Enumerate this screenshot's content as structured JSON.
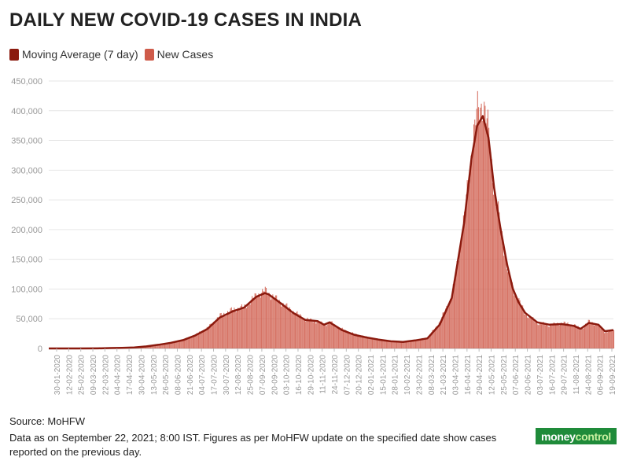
{
  "title": "DAILY NEW COVID-19 CASES IN INDIA",
  "legend": [
    {
      "label": "Moving Average (7 day)",
      "color": "#8b1a0e"
    },
    {
      "label": "New Cases",
      "color": "#cf5b4a"
    }
  ],
  "footer": {
    "source": "Source: MoHFW",
    "note_line1": "Data as on September 22, 2021; 8:00 IST. Figures as per MoHFW update on the specified date show cases",
    "note_line2": "reported on the previous day."
  },
  "logo": {
    "part1": "money",
    "part2": "control"
  },
  "chart_data": {
    "type": "bar",
    "title": "DAILY NEW COVID-19 CASES IN INDIA",
    "ylim": [
      0,
      450000
    ],
    "y_ticks": [
      "0",
      "50,000",
      "100,000",
      "150,000",
      "200,000",
      "250,000",
      "300,000",
      "350,000",
      "400,000",
      "450,000"
    ],
    "x_start": "30-01-2020",
    "x_end": "22-09-2021",
    "x_tick_labels": [
      "30-01-2020",
      "12-02-2020",
      "25-02-2020",
      "09-03-2020",
      "22-03-2020",
      "04-04-2020",
      "17-04-2020",
      "30-04-2020",
      "13-05-2020",
      "26-05-2020",
      "08-06-2020",
      "21-06-2020",
      "04-07-2020",
      "17-07-2020",
      "30-07-2020",
      "12-08-2020",
      "25-08-2020",
      "07-09-2020",
      "20-09-2020",
      "03-10-2020",
      "16-10-2020",
      "29-10-2020",
      "11-11-2020",
      "24-11-2020",
      "07-12-2020",
      "20-12-2020",
      "02-01-2021",
      "15-01-2021",
      "28-01-2021",
      "10-02-2021",
      "23-02-2021",
      "08-03-2021",
      "21-03-2021",
      "03-04-2021",
      "16-04-2021",
      "29-04-2021",
      "12-05-2021",
      "25-05-2021",
      "07-06-2021",
      "20-06-2021",
      "03-07-2021",
      "16-07-2021",
      "29-07-2021",
      "11-08-2021",
      "24-08-2021",
      "06-09-2021",
      "19-09-2021"
    ],
    "grid": true,
    "legend_position": "top-left",
    "series": [
      {
        "name": "New Cases",
        "color": "#cf5b4a",
        "points": [
          [
            "30-01-2020",
            0
          ],
          [
            "01-03-2020",
            20
          ],
          [
            "22-03-2020",
            100
          ],
          [
            "04-04-2020",
            700
          ],
          [
            "17-04-2020",
            1200
          ],
          [
            "30-04-2020",
            1800
          ],
          [
            "13-05-2020",
            3600
          ],
          [
            "26-05-2020",
            6500
          ],
          [
            "08-06-2020",
            9900
          ],
          [
            "21-06-2020",
            15000
          ],
          [
            "04-07-2020",
            23000
          ],
          [
            "17-07-2020",
            35000
          ],
          [
            "30-07-2020",
            55000
          ],
          [
            "12-08-2020",
            65000
          ],
          [
            "25-08-2020",
            70000
          ],
          [
            "07-09-2020",
            90000
          ],
          [
            "16-09-2020",
            97000
          ],
          [
            "20-09-2020",
            92000
          ],
          [
            "03-10-2020",
            77000
          ],
          [
            "16-10-2020",
            62000
          ],
          [
            "29-10-2020",
            49000
          ],
          [
            "11-11-2020",
            45000
          ],
          [
            "18-11-2020",
            40000
          ],
          [
            "24-11-2020",
            44000
          ],
          [
            "07-12-2020",
            32000
          ],
          [
            "20-12-2020",
            24000
          ],
          [
            "02-01-2021",
            19000
          ],
          [
            "15-01-2021",
            15000
          ],
          [
            "28-01-2021",
            12000
          ],
          [
            "10-02-2021",
            11000
          ],
          [
            "23-02-2021",
            14000
          ],
          [
            "08-03-2021",
            18000
          ],
          [
            "21-03-2021",
            45000
          ],
          [
            "03-04-2021",
            90000
          ],
          [
            "16-04-2021",
            220000
          ],
          [
            "24-04-2021",
            340000
          ],
          [
            "30-04-2021",
            400000
          ],
          [
            "06-05-2021",
            414000
          ],
          [
            "12-05-2021",
            360000
          ],
          [
            "18-05-2021",
            265000
          ],
          [
            "25-05-2021",
            200000
          ],
          [
            "01-06-2021",
            130000
          ],
          [
            "07-06-2021",
            100000
          ],
          [
            "13-06-2021",
            80000
          ],
          [
            "20-06-2021",
            58000
          ],
          [
            "03-07-2021",
            43000
          ],
          [
            "16-07-2021",
            39000
          ],
          [
            "29-07-2021",
            43000
          ],
          [
            "11-08-2021",
            39000
          ],
          [
            "18-08-2021",
            32000
          ],
          [
            "27-08-2021",
            46000
          ],
          [
            "06-09-2021",
            38000
          ],
          [
            "13-09-2021",
            27000
          ],
          [
            "22-09-2021",
            31000
          ]
        ]
      },
      {
        "name": "Moving Average (7 day)",
        "color": "#8b1a0e",
        "points": [
          [
            "30-01-2020",
            0
          ],
          [
            "01-03-2020",
            10
          ],
          [
            "22-03-2020",
            80
          ],
          [
            "04-04-2020",
            600
          ],
          [
            "17-04-2020",
            1100
          ],
          [
            "30-04-2020",
            1700
          ],
          [
            "13-05-2020",
            3400
          ],
          [
            "26-05-2020",
            6200
          ],
          [
            "08-06-2020",
            9500
          ],
          [
            "21-06-2020",
            14000
          ],
          [
            "04-07-2020",
            22000
          ],
          [
            "17-07-2020",
            33000
          ],
          [
            "30-07-2020",
            52000
          ],
          [
            "12-08-2020",
            62000
          ],
          [
            "25-08-2020",
            69000
          ],
          [
            "07-09-2020",
            87000
          ],
          [
            "16-09-2020",
            93000
          ],
          [
            "20-09-2020",
            91000
          ],
          [
            "03-10-2020",
            76000
          ],
          [
            "16-10-2020",
            60000
          ],
          [
            "29-10-2020",
            48000
          ],
          [
            "11-11-2020",
            46000
          ],
          [
            "18-11-2020",
            40000
          ],
          [
            "24-11-2020",
            44000
          ],
          [
            "07-12-2020",
            31000
          ],
          [
            "20-12-2020",
            23000
          ],
          [
            "02-01-2021",
            18500
          ],
          [
            "15-01-2021",
            15000
          ],
          [
            "28-01-2021",
            12000
          ],
          [
            "10-02-2021",
            11000
          ],
          [
            "23-02-2021",
            13500
          ],
          [
            "08-03-2021",
            17000
          ],
          [
            "21-03-2021",
            40000
          ],
          [
            "03-04-2021",
            85000
          ],
          [
            "16-04-2021",
            210000
          ],
          [
            "24-04-2021",
            320000
          ],
          [
            "30-04-2021",
            375000
          ],
          [
            "06-05-2021",
            391000
          ],
          [
            "12-05-2021",
            355000
          ],
          [
            "18-05-2021",
            270000
          ],
          [
            "25-05-2021",
            200000
          ],
          [
            "01-06-2021",
            140000
          ],
          [
            "07-06-2021",
            100000
          ],
          [
            "13-06-2021",
            78000
          ],
          [
            "20-06-2021",
            60000
          ],
          [
            "03-07-2021",
            44000
          ],
          [
            "16-07-2021",
            40000
          ],
          [
            "29-07-2021",
            41000
          ],
          [
            "11-08-2021",
            38000
          ],
          [
            "18-08-2021",
            33000
          ],
          [
            "27-08-2021",
            43000
          ],
          [
            "06-09-2021",
            40000
          ],
          [
            "13-09-2021",
            29000
          ],
          [
            "22-09-2021",
            31000
          ]
        ]
      }
    ]
  }
}
